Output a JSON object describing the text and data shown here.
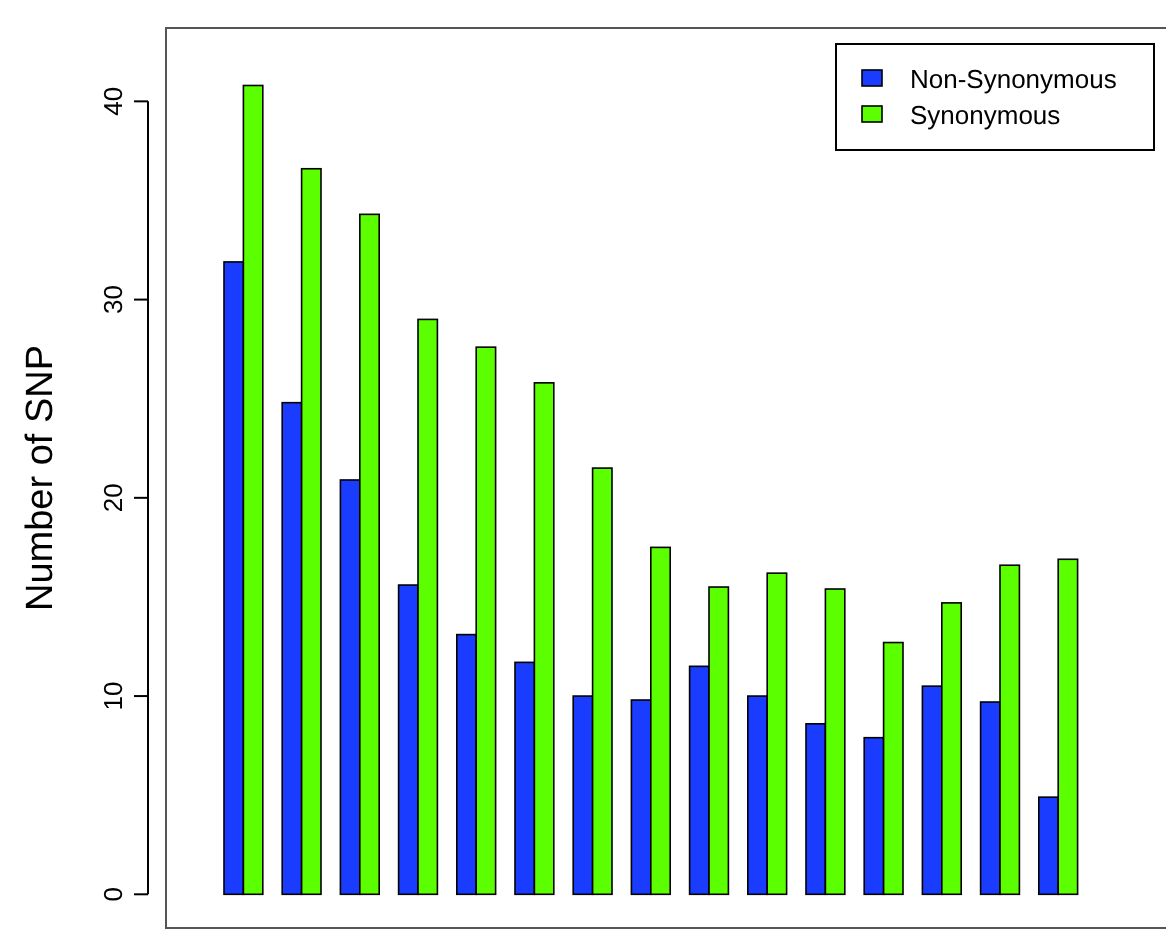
{
  "chart_data": {
    "type": "bar",
    "ylabel": "Number of SNP",
    "categories": [
      null,
      null,
      null,
      null,
      null,
      null,
      null,
      null,
      null,
      null,
      null,
      null,
      null,
      null,
      null
    ],
    "series": [
      {
        "name": "Non-Synonymous",
        "color": "#1a3cff",
        "values": [
          31.9,
          24.8,
          20.9,
          15.6,
          13.1,
          11.7,
          10.0,
          9.8,
          11.5,
          10.0,
          8.6,
          7.9,
          10.5,
          9.7,
          4.9
        ]
      },
      {
        "name": "Synonymous",
        "color": "#5cff00",
        "values": [
          40.8,
          36.6,
          34.3,
          29.0,
          27.6,
          25.8,
          21.5,
          17.5,
          15.5,
          16.2,
          15.4,
          12.7,
          14.7,
          16.6,
          16.9
        ]
      }
    ],
    "ylim": [
      -1.7,
      43.7
    ],
    "yticks": [
      0,
      10,
      20,
      30,
      40
    ],
    "legend": "top right",
    "grid": false
  }
}
